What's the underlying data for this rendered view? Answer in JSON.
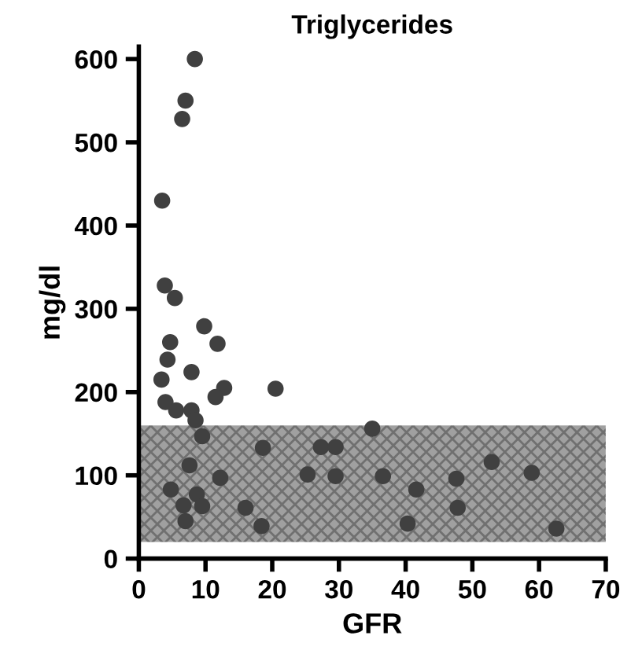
{
  "chart_data": {
    "type": "scatter",
    "title": "Triglycerides",
    "xlabel": "GFR",
    "ylabel": "mg/dl",
    "x": [
      8.4,
      7.0,
      6.5,
      3.5,
      3.9,
      5.4,
      9.8,
      11.8,
      4.7,
      4.3,
      7.9,
      3.4,
      12.8,
      11.5,
      20.5,
      4.0,
      5.6,
      7.9,
      8.5,
      9.5,
      18.6,
      27.3,
      29.5,
      35.0,
      7.6,
      12.2,
      25.3,
      29.5,
      4.8,
      8.7,
      9.5,
      6.7,
      16.0,
      7.0,
      18.4,
      36.6,
      41.6,
      47.6,
      47.8,
      52.9,
      58.9,
      40.3,
      62.6
    ],
    "values": [
      600,
      550,
      528,
      430,
      328,
      313,
      279,
      258,
      260,
      239,
      224,
      215,
      205,
      194,
      204,
      188,
      178,
      178,
      166,
      147,
      133,
      134,
      134,
      156,
      112,
      97,
      101,
      99,
      83,
      77,
      63,
      64,
      61,
      45,
      39,
      99,
      83,
      96,
      61,
      116,
      103,
      42,
      36
    ],
    "color": "#404040",
    "marker": "circle",
    "xlim": [
      0,
      70
    ],
    "ylim": [
      0,
      615
    ],
    "xticks": [
      0,
      10,
      20,
      30,
      40,
      50,
      60,
      70
    ],
    "yticks": [
      0,
      100,
      200,
      300,
      400,
      500,
      600
    ],
    "bands": [
      {
        "axis": "y",
        "from": 20,
        "to": 160,
        "color": "#a0a0a0"
      }
    ],
    "grid": false,
    "legend": false
  }
}
